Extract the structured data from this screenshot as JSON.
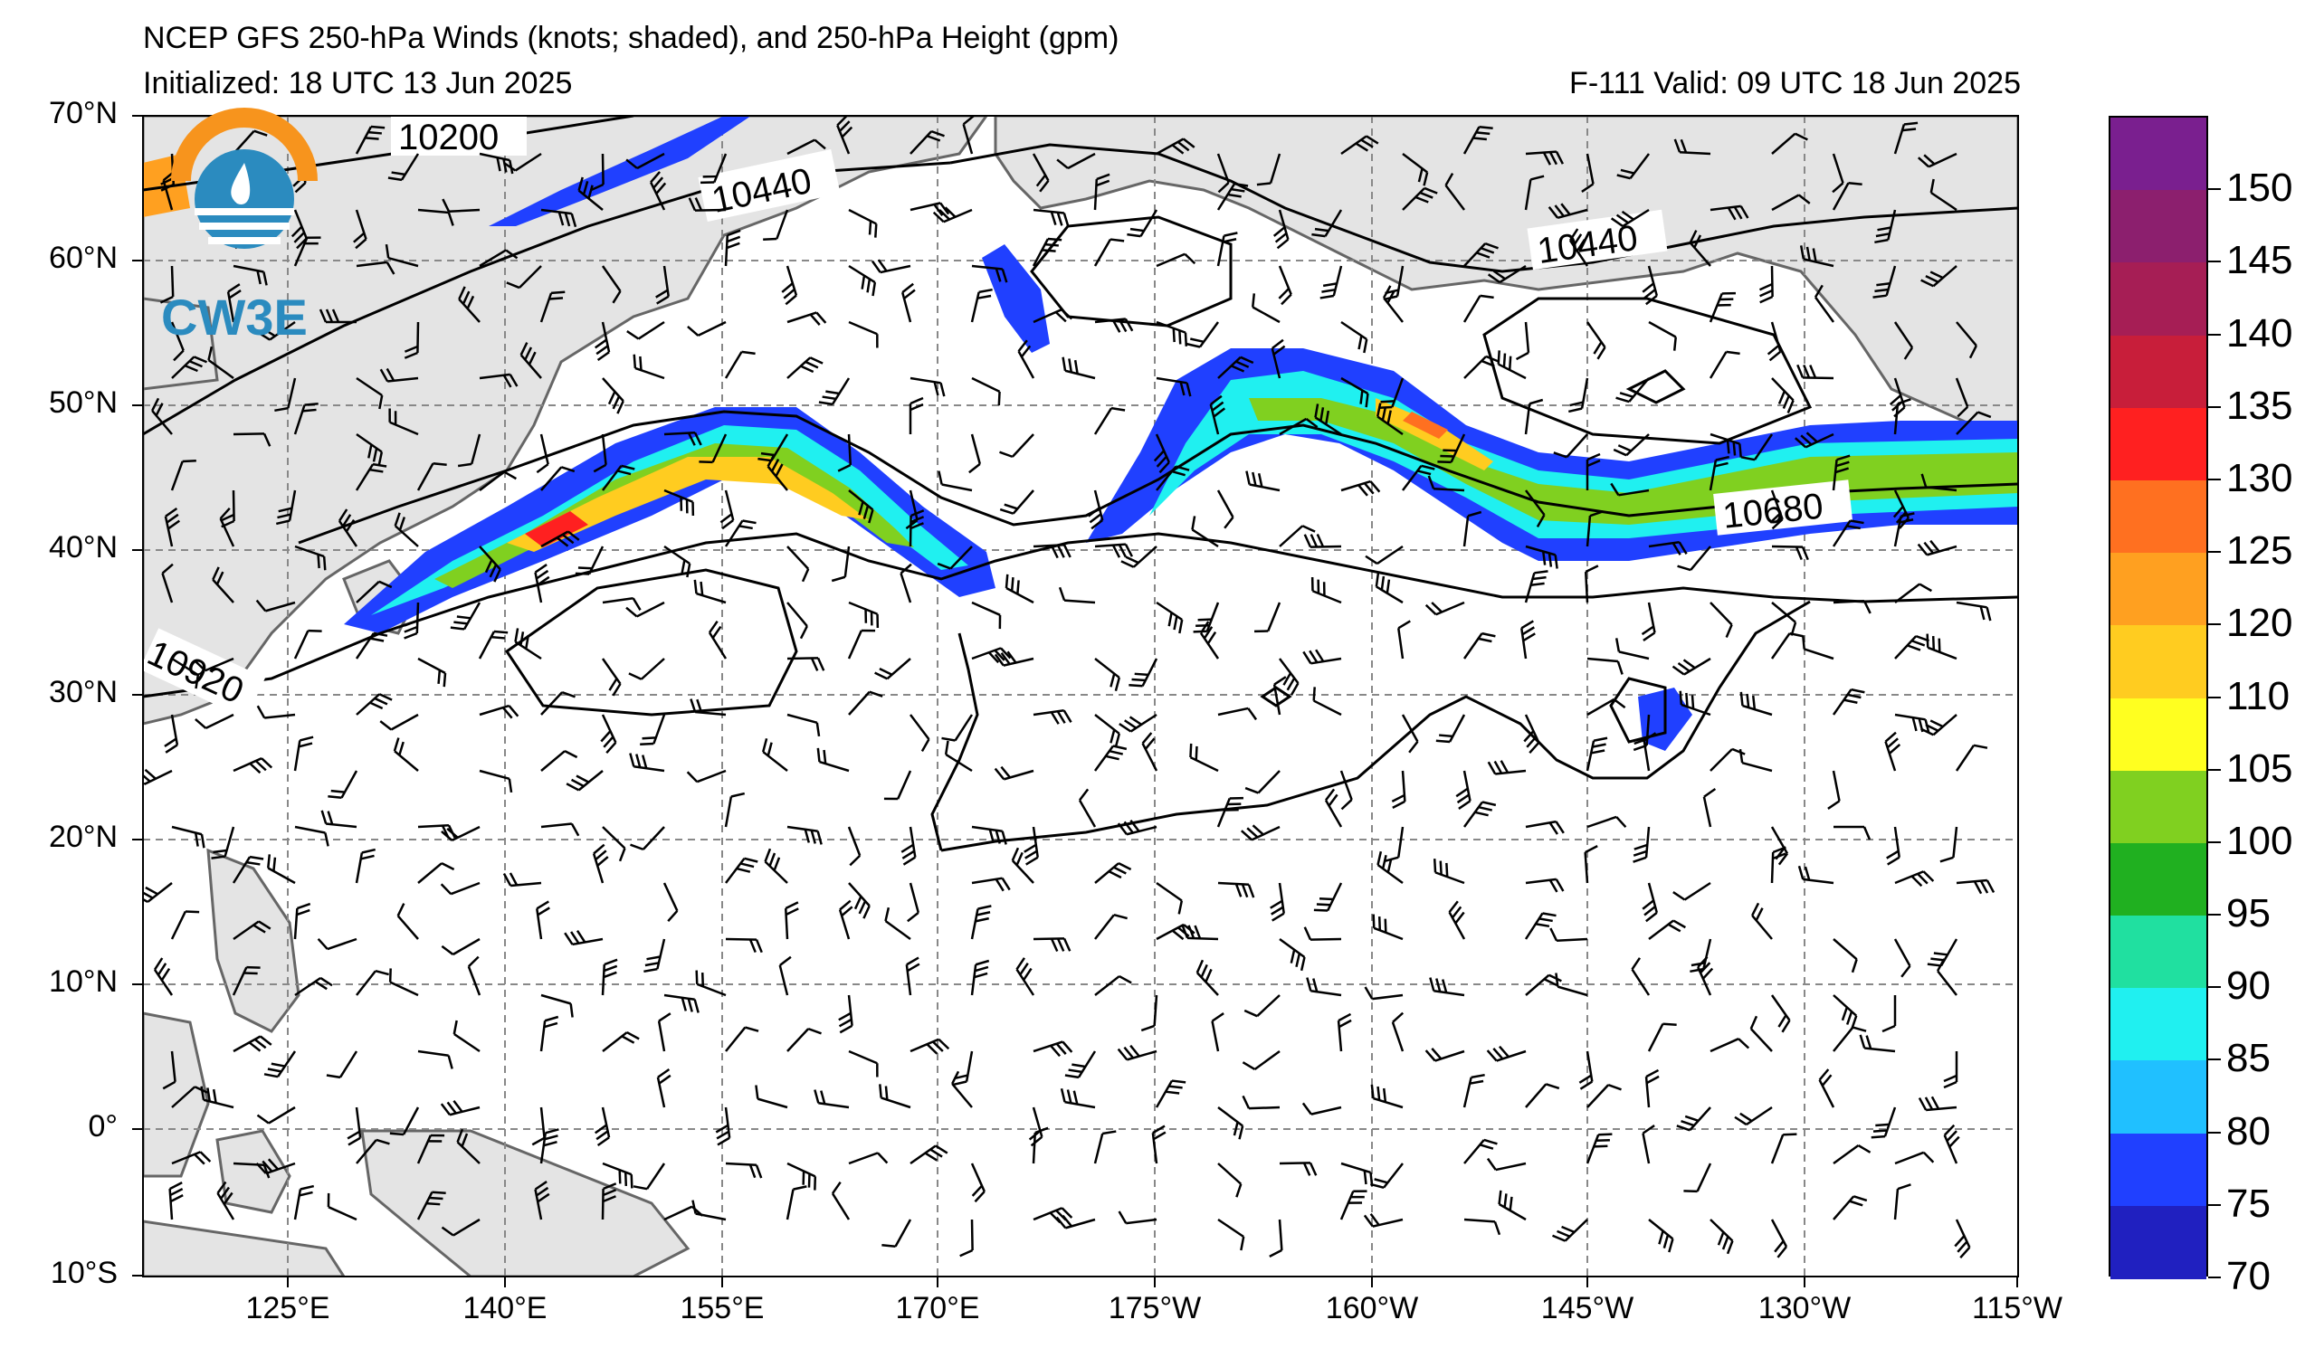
{
  "header": {
    "title": "NCEP GFS 250-hPa Winds (knots; shaded), and 250-hPa Height (gpm)",
    "initialized": "Initialized: 18 UTC 13 Jun 2025",
    "valid": "F-111  Valid: 09 UTC 18 Jun 2025"
  },
  "logo": {
    "text": "CW3E",
    "colors": {
      "ring": "#f7941d",
      "body": "#2b8bbf"
    }
  },
  "lat_labels": [
    "70°N",
    "60°N",
    "50°N",
    "40°N",
    "30°N",
    "20°N",
    "10°N",
    "0°",
    "10°S"
  ],
  "lon_labels": [
    "125°E",
    "140°E",
    "155°E",
    "170°E",
    "175°W",
    "160°W",
    "145°W",
    "130°W",
    "115°W"
  ],
  "contour_labels": [
    "10200",
    "10440",
    "10440",
    "10680",
    "10920"
  ],
  "colorbar": {
    "labels": [
      "150",
      "145",
      "140",
      "135",
      "130",
      "125",
      "120",
      "110",
      "105",
      "100",
      "95",
      "90",
      "85",
      "80",
      "75",
      "70"
    ],
    "colors": [
      "#7a1f8f",
      "#8c1f6e",
      "#a61e55",
      "#c81e3a",
      "#ff2020",
      "#ff7020",
      "#ffa020",
      "#ffcc20",
      "#ffff20",
      "#80d020",
      "#20b020",
      "#20e0a0",
      "#20f0f0",
      "#20c0ff",
      "#2040ff",
      "#2020c0"
    ]
  }
}
